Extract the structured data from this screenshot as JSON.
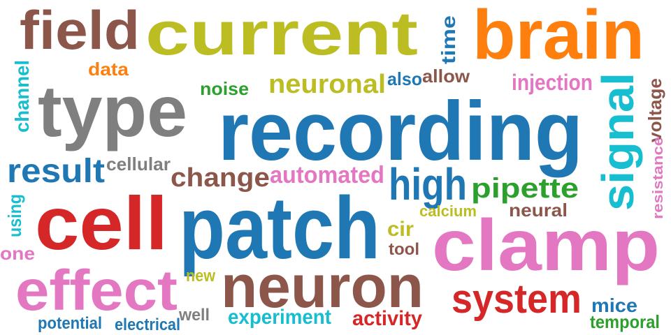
{
  "palette": {
    "brown": "#8c564b",
    "olive": "#bcbd22",
    "orange": "#ff7f0e",
    "gray": "#7f7f7f",
    "blue": "#1f77b4",
    "red": "#d62728",
    "pink": "#e377c2",
    "green": "#2ca02c",
    "cyan": "#17becf"
  },
  "words": [
    {
      "text": "field",
      "color": "brown",
      "vertical": false
    },
    {
      "text": "current",
      "color": "olive",
      "vertical": false
    },
    {
      "text": "brain",
      "color": "orange",
      "vertical": false
    },
    {
      "text": "type",
      "color": "gray",
      "vertical": false
    },
    {
      "text": "recording",
      "color": "blue",
      "vertical": false
    },
    {
      "text": "cell",
      "color": "red",
      "vertical": false
    },
    {
      "text": "patch",
      "color": "blue",
      "vertical": false
    },
    {
      "text": "clamp",
      "color": "pink",
      "vertical": false
    },
    {
      "text": "neuron",
      "color": "brown",
      "vertical": false
    },
    {
      "text": "effect",
      "color": "pink",
      "vertical": false
    },
    {
      "text": "signal",
      "color": "cyan",
      "vertical": true
    },
    {
      "text": "system",
      "color": "red",
      "vertical": false
    },
    {
      "text": "high",
      "color": "blue",
      "vertical": false
    },
    {
      "text": "result",
      "color": "blue",
      "vertical": false
    },
    {
      "text": "neuronal",
      "color": "olive",
      "vertical": false
    },
    {
      "text": "change",
      "color": "brown",
      "vertical": false
    },
    {
      "text": "pipette",
      "color": "green",
      "vertical": false
    },
    {
      "text": "automated",
      "color": "pink",
      "vertical": false
    },
    {
      "text": "injection",
      "color": "pink",
      "vertical": false
    },
    {
      "text": "cellular",
      "color": "gray",
      "vertical": false
    },
    {
      "text": "noise",
      "color": "green",
      "vertical": false
    },
    {
      "text": "allow",
      "color": "brown",
      "vertical": false
    },
    {
      "text": "experiment",
      "color": "cyan",
      "vertical": false
    },
    {
      "text": "activity",
      "color": "red",
      "vertical": false
    },
    {
      "text": "neural",
      "color": "brown",
      "vertical": false
    },
    {
      "text": "mice",
      "color": "blue",
      "vertical": false
    },
    {
      "text": "temporal",
      "color": "green",
      "vertical": false
    },
    {
      "text": "voltage",
      "color": "brown",
      "vertical": true
    },
    {
      "text": "time",
      "color": "blue",
      "vertical": true
    },
    {
      "text": "channel",
      "color": "cyan",
      "vertical": true
    },
    {
      "text": "data",
      "color": "orange",
      "vertical": false
    },
    {
      "text": "also",
      "color": "blue",
      "vertical": false
    },
    {
      "text": "cir",
      "color": "olive",
      "vertical": false
    },
    {
      "text": "calcium",
      "color": "olive",
      "vertical": false
    },
    {
      "text": "tool",
      "color": "brown",
      "vertical": false
    },
    {
      "text": "using",
      "color": "cyan",
      "vertical": true
    },
    {
      "text": "one",
      "color": "pink",
      "vertical": false
    },
    {
      "text": "resistance",
      "color": "pink",
      "vertical": true
    },
    {
      "text": "new",
      "color": "olive",
      "vertical": false
    },
    {
      "text": "well",
      "color": "gray",
      "vertical": false
    },
    {
      "text": "potential",
      "color": "blue",
      "vertical": false
    },
    {
      "text": "electrical",
      "color": "blue",
      "vertical": false
    }
  ]
}
